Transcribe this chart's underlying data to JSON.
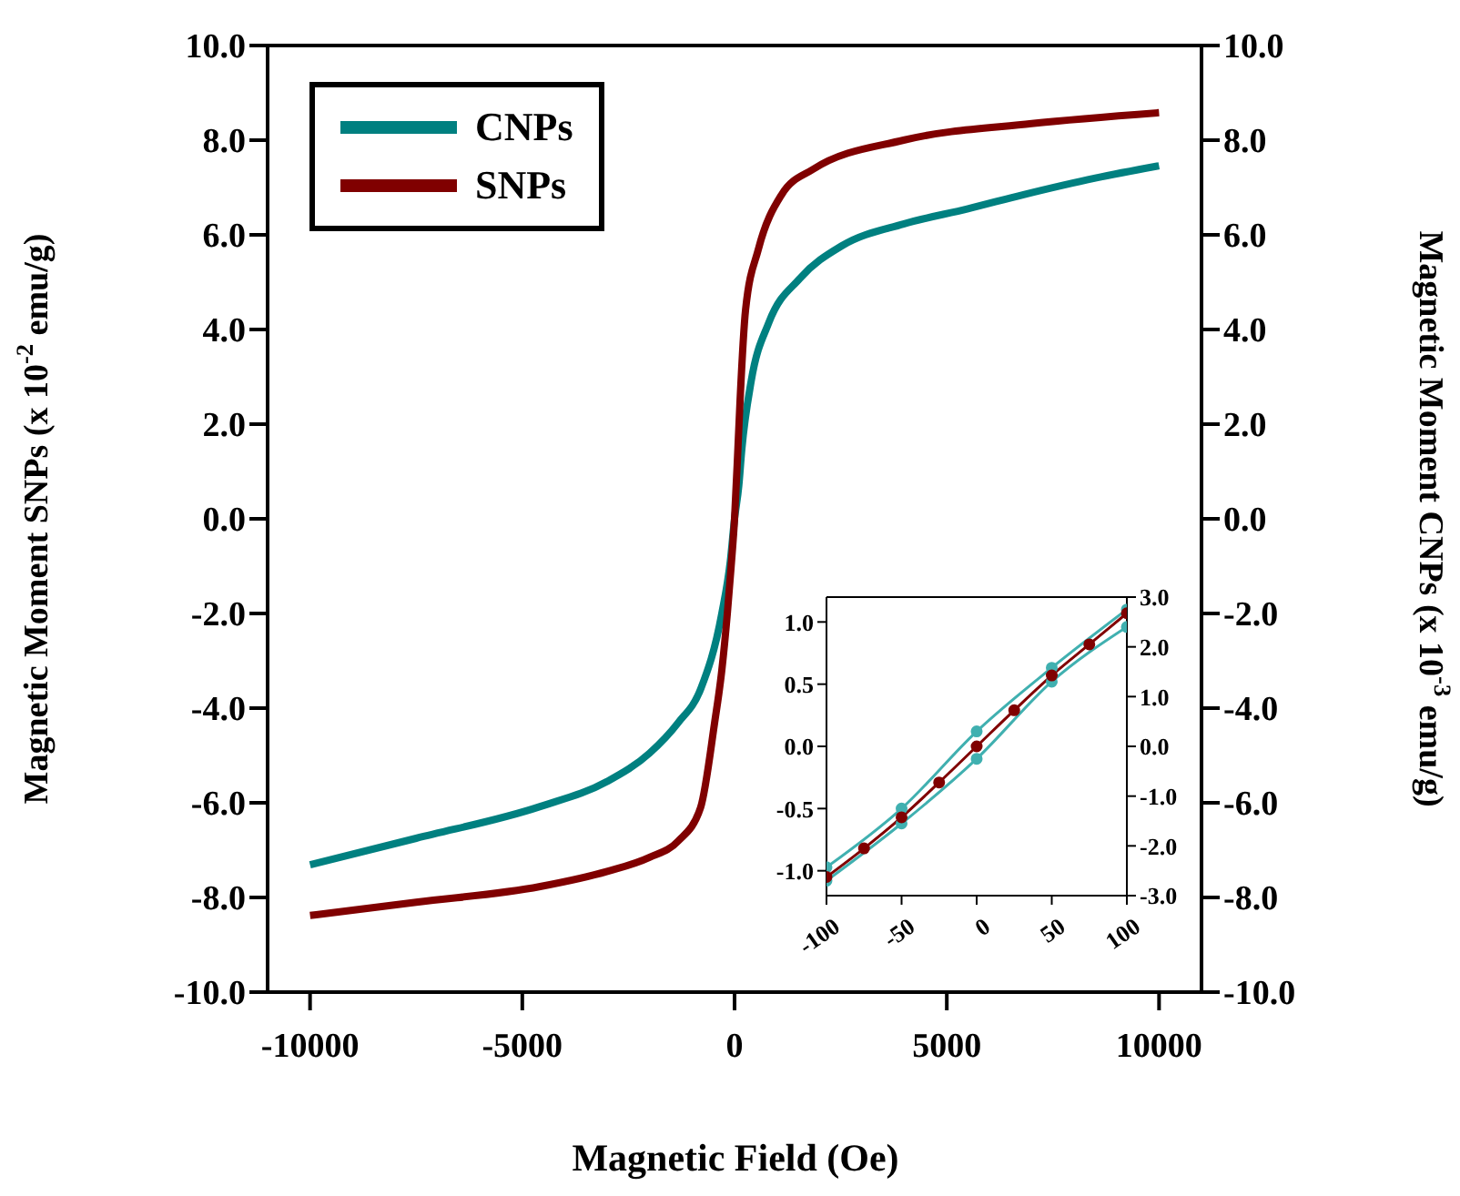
{
  "chart_data": [
    {
      "type": "line",
      "xlabel": "Magnetic Field (Oe)",
      "ylabel": "Magnetic Moment SNPs (x 10$^{-2}$ emu/g)",
      "y2label": "Magnetic Moment CNPs (x 10$^{-3}$ emu/g)",
      "xlim": [
        -11000,
        11000
      ],
      "xticks": [
        -10000,
        -5000,
        0,
        5000,
        10000
      ],
      "ylim": [
        -10,
        10
      ],
      "yticks": [
        {
          "value": -10,
          "label": "-10.0"
        },
        {
          "value": -8,
          "label": "-8.0"
        },
        {
          "value": -6,
          "label": "-6.0"
        },
        {
          "value": -4,
          "label": "-4.0"
        },
        {
          "value": -2,
          "label": "-2.0"
        },
        {
          "value": 0,
          "label": "0.0"
        },
        {
          "value": 2,
          "label": "2.0"
        },
        {
          "value": 4,
          "label": "4.0"
        },
        {
          "value": 6,
          "label": "6.0"
        },
        {
          "value": 8,
          "label": "8.0"
        },
        {
          "value": 10,
          "label": "10.0"
        }
      ],
      "y2lim": [
        -10,
        10
      ],
      "y2ticks": [
        {
          "value": -10,
          "label": "-10.0"
        },
        {
          "value": -8,
          "label": "-8.0"
        },
        {
          "value": -6,
          "label": "-6.0"
        },
        {
          "value": -4,
          "label": "-4.0"
        },
        {
          "value": -2,
          "label": "-2.0"
        },
        {
          "value": 0,
          "label": "0.0"
        },
        {
          "value": 2,
          "label": "2.0"
        },
        {
          "value": 4,
          "label": "4.0"
        },
        {
          "value": 6,
          "label": "6.0"
        },
        {
          "value": 8,
          "label": "8.0"
        },
        {
          "value": 10,
          "label": "10.0"
        }
      ],
      "legend": "top left",
      "series": [
        {
          "name": "CNPs",
          "color": "#008080",
          "axis": "y2",
          "x": [
            -10000,
            -7500,
            -4580,
            -3000,
            -2000,
            -1330,
            -800,
            -300,
            -100,
            0,
            100,
            170,
            390,
            810,
            1540,
            2530,
            3980,
            5500,
            6810,
            8500,
            10000
          ],
          "values": [
            -7.31,
            -6.75,
            -6.08,
            -5.55,
            -4.95,
            -4.31,
            -3.6,
            -2.0,
            -0.9,
            0,
            0.7,
            1.46,
            2.9,
            4.15,
            5.08,
            5.77,
            6.23,
            6.55,
            6.85,
            7.2,
            7.46
          ]
        },
        {
          "name": "SNPs",
          "color": "#800000",
          "x": [
            -10000,
            -7500,
            -4580,
            -3000,
            -2000,
            -1330,
            -800,
            -470,
            -300,
            -170,
            -80,
            0,
            80,
            130,
            260,
            560,
            1110,
            1840,
            3980,
            7000,
            10000
          ],
          "values": [
            -8.38,
            -8.1,
            -7.77,
            -7.45,
            -7.15,
            -6.81,
            -6.1,
            -4.31,
            -3.2,
            -2.0,
            -1.0,
            0,
            1.5,
            2.5,
            4.42,
            5.69,
            6.85,
            7.38,
            8.0,
            8.35,
            8.58
          ]
        }
      ]
    },
    {
      "type": "line",
      "xlim": [
        -100,
        100
      ],
      "xticks": [
        -100,
        -50,
        0,
        50,
        100
      ],
      "ylim": [
        -1.2,
        1.2
      ],
      "yticks": [
        {
          "value": -1,
          "label": "-1.0"
        },
        {
          "value": -0.5,
          "label": "-0.5"
        },
        {
          "value": 0,
          "label": "0.0"
        },
        {
          "value": 0.5,
          "label": "0.5"
        },
        {
          "value": 1,
          "label": "1.0"
        }
      ],
      "y2lim": [
        -3,
        3
      ],
      "y2ticks": [
        {
          "value": -3,
          "label": "-3.0"
        },
        {
          "value": -2,
          "label": "-2.0"
        },
        {
          "value": -1,
          "label": "-1.0"
        },
        {
          "value": 0,
          "label": "0.0"
        },
        {
          "value": 1,
          "label": "1.0"
        },
        {
          "value": 2,
          "label": "2.0"
        },
        {
          "value": 3,
          "label": "3.0"
        }
      ],
      "marker": "circle",
      "series": [
        {
          "color": "#40b0b0",
          "axis": "y2",
          "x": [
            -100,
            -50,
            0,
            50,
            100
          ],
          "values": [
            -2.43,
            -1.25,
            0.3,
            1.58,
            2.75
          ]
        },
        {
          "color": "#40b0b0",
          "axis": "y2",
          "x": [
            -100,
            -50,
            0,
            50,
            100
          ],
          "values": [
            -2.7,
            -1.55,
            -0.25,
            1.3,
            2.4
          ]
        },
        {
          "color": "#800000",
          "x": [
            -100,
            -75,
            -50,
            -25,
            0,
            25,
            50,
            75,
            100
          ],
          "values": [
            -1.05,
            -0.82,
            -0.57,
            -0.29,
            0,
            0.29,
            0.57,
            0.82,
            1.07
          ]
        }
      ]
    }
  ]
}
